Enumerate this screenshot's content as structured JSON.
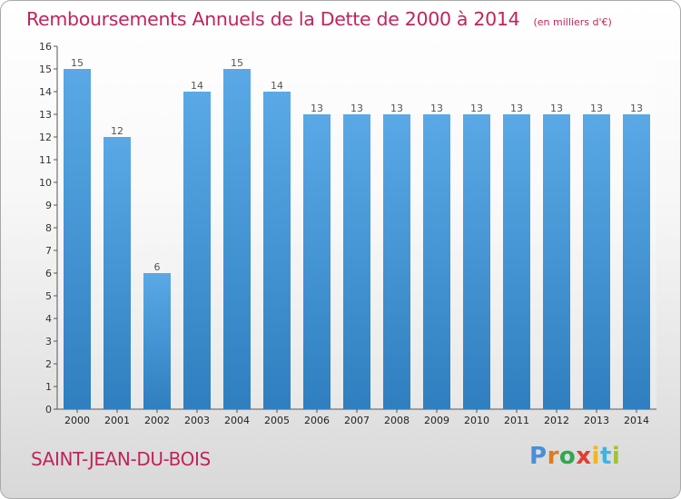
{
  "header": {
    "title": "Remboursements Annuels de la Dette de 2000 à 2014",
    "unit": "(en milliers d'€)"
  },
  "footer": {
    "commune": "SAINT-JEAN-DU-BOIS",
    "brand": "Proxiti",
    "brand_colors": [
      "#4a8fd6",
      "#e07a1f",
      "#2fa84f",
      "#e23d2e",
      "#f2b51c",
      "#3cb4e5",
      "#9fc531"
    ]
  },
  "chart_data": {
    "type": "bar",
    "title": "Remboursements Annuels de la Dette de 2000 à 2014",
    "subtitle": "(en milliers d'€)",
    "categories": [
      "2000",
      "2001",
      "2002",
      "2003",
      "2004",
      "2005",
      "2006",
      "2007",
      "2008",
      "2009",
      "2010",
      "2011",
      "2012",
      "2013",
      "2014"
    ],
    "values": [
      15,
      12,
      6,
      14,
      15,
      14,
      13,
      13,
      13,
      13,
      13,
      13,
      13,
      13,
      13
    ],
    "ylim": [
      0,
      16
    ],
    "yticks": [
      0,
      1,
      2,
      3,
      4,
      5,
      6,
      7,
      8,
      9,
      10,
      11,
      12,
      13,
      14,
      15,
      16
    ],
    "grid": false,
    "bar_color_light": "#5aa9e6",
    "bar_color_dark": "#2f7fc0",
    "label_color": "#555555"
  }
}
